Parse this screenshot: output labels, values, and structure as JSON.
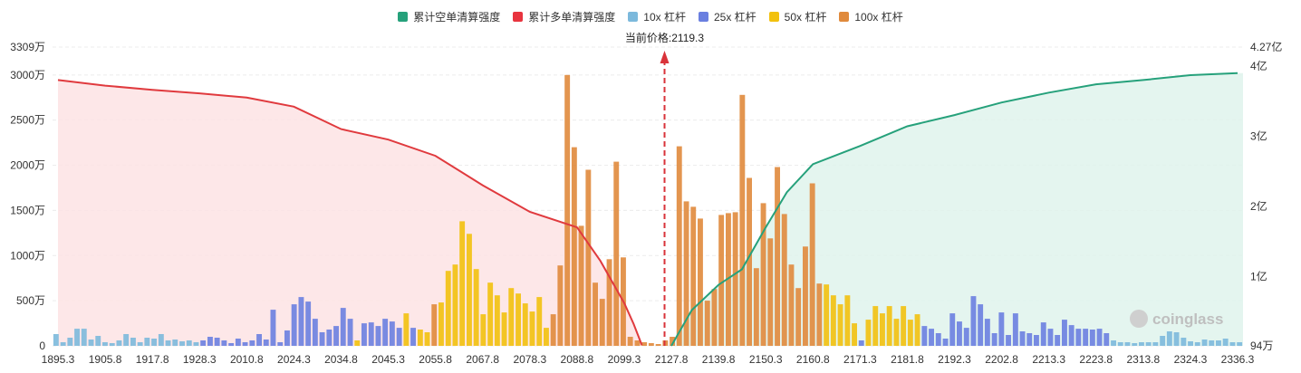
{
  "chart_data": {
    "type": "bar",
    "legend": [
      {
        "name": "累计空单清算强度",
        "color": "#26a17b"
      },
      {
        "name": "累计多单清算强度",
        "color": "#e8343f"
      },
      {
        "name": "10x 杠杆",
        "color": "#7cb9dc"
      },
      {
        "name": "25x 杠杆",
        "color": "#6a7fe0"
      },
      {
        "name": "50x 杠杆",
        "color": "#f2c10e"
      },
      {
        "name": "100x 杠杆",
        "color": "#e08a3c"
      }
    ],
    "annotation": "当前价格:2119.3",
    "current_price": 2119.3,
    "y_left_ticks": [
      "3309万",
      "3000万",
      "2500万",
      "2000万",
      "1500万",
      "1000万",
      "500万",
      "0"
    ],
    "y_left_range": [
      0,
      3309
    ],
    "y_left_unit": "万",
    "y_right_ticks": [
      "4.27亿",
      "4亿",
      "3亿",
      "2亿",
      "1亿",
      "94万"
    ],
    "y_right_range": [
      0.0094,
      4.27
    ],
    "y_right_unit": "亿",
    "x_ticks": [
      "1895.3",
      "1905.8",
      "1917.8",
      "1928.3",
      "2010.8",
      "2024.3",
      "2034.8",
      "2045.3",
      "2055.8",
      "2067.8",
      "2078.3",
      "2088.8",
      "2099.3",
      "2127.8",
      "2139.8",
      "2150.3",
      "2160.8",
      "2171.3",
      "2181.8",
      "2192.3",
      "2202.8",
      "2213.3",
      "2223.8",
      "2313.8",
      "2324.3",
      "2336.3"
    ],
    "bar_count": 170,
    "bars": [
      {
        "tier": "10x",
        "value": 130
      },
      {
        "tier": "10x",
        "value": 40
      },
      {
        "tier": "10x",
        "value": 90
      },
      {
        "tier": "10x",
        "value": 190
      },
      {
        "tier": "10x",
        "value": 190
      },
      {
        "tier": "10x",
        "value": 70
      },
      {
        "tier": "10x",
        "value": 110
      },
      {
        "tier": "10x",
        "value": 40
      },
      {
        "tier": "10x",
        "value": 30
      },
      {
        "tier": "10x",
        "value": 60
      },
      {
        "tier": "10x",
        "value": 130
      },
      {
        "tier": "10x",
        "value": 90
      },
      {
        "tier": "10x",
        "value": 40
      },
      {
        "tier": "10x",
        "value": 90
      },
      {
        "tier": "10x",
        "value": 80
      },
      {
        "tier": "10x",
        "value": 130
      },
      {
        "tier": "10x",
        "value": 60
      },
      {
        "tier": "10x",
        "value": 70
      },
      {
        "tier": "10x",
        "value": 50
      },
      {
        "tier": "10x",
        "value": 60
      },
      {
        "tier": "10x",
        "value": 40
      },
      {
        "tier": "25x",
        "value": 60
      },
      {
        "tier": "25x",
        "value": 100
      },
      {
        "tier": "25x",
        "value": 90
      },
      {
        "tier": "25x",
        "value": 60
      },
      {
        "tier": "25x",
        "value": 30
      },
      {
        "tier": "25x",
        "value": 80
      },
      {
        "tier": "25x",
        "value": 40
      },
      {
        "tier": "25x",
        "value": 60
      },
      {
        "tier": "25x",
        "value": 130
      },
      {
        "tier": "25x",
        "value": 70
      },
      {
        "tier": "25x",
        "value": 400
      },
      {
        "tier": "25x",
        "value": 40
      },
      {
        "tier": "25x",
        "value": 170
      },
      {
        "tier": "25x",
        "value": 460
      },
      {
        "tier": "25x",
        "value": 540
      },
      {
        "tier": "25x",
        "value": 490
      },
      {
        "tier": "25x",
        "value": 300
      },
      {
        "tier": "25x",
        "value": 150
      },
      {
        "tier": "25x",
        "value": 180
      },
      {
        "tier": "25x",
        "value": 220
      },
      {
        "tier": "25x",
        "value": 420
      },
      {
        "tier": "25x",
        "value": 300
      },
      {
        "tier": "50x",
        "value": 60
      },
      {
        "tier": "25x",
        "value": 250
      },
      {
        "tier": "25x",
        "value": 260
      },
      {
        "tier": "25x",
        "value": 220
      },
      {
        "tier": "25x",
        "value": 300
      },
      {
        "tier": "25x",
        "value": 270
      },
      {
        "tier": "25x",
        "value": 200
      },
      {
        "tier": "50x",
        "value": 360
      },
      {
        "tier": "25x",
        "value": 200
      },
      {
        "tier": "50x",
        "value": 180
      },
      {
        "tier": "50x",
        "value": 150
      },
      {
        "tier": "100x",
        "value": 460
      },
      {
        "tier": "50x",
        "value": 480
      },
      {
        "tier": "50x",
        "value": 830
      },
      {
        "tier": "50x",
        "value": 900
      },
      {
        "tier": "50x",
        "value": 1380
      },
      {
        "tier": "50x",
        "value": 1240
      },
      {
        "tier": "50x",
        "value": 850
      },
      {
        "tier": "50x",
        "value": 350
      },
      {
        "tier": "50x",
        "value": 700
      },
      {
        "tier": "50x",
        "value": 560
      },
      {
        "tier": "50x",
        "value": 370
      },
      {
        "tier": "50x",
        "value": 640
      },
      {
        "tier": "50x",
        "value": 580
      },
      {
        "tier": "50x",
        "value": 470
      },
      {
        "tier": "50x",
        "value": 380
      },
      {
        "tier": "50x",
        "value": 540
      },
      {
        "tier": "50x",
        "value": 200
      },
      {
        "tier": "100x",
        "value": 350
      },
      {
        "tier": "100x",
        "value": 890
      },
      {
        "tier": "100x",
        "value": 3000
      },
      {
        "tier": "100x",
        "value": 2200
      },
      {
        "tier": "100x",
        "value": 1330
      },
      {
        "tier": "100x",
        "value": 1950
      },
      {
        "tier": "100x",
        "value": 700
      },
      {
        "tier": "100x",
        "value": 520
      },
      {
        "tier": "100x",
        "value": 960
      },
      {
        "tier": "100x",
        "value": 2040
      },
      {
        "tier": "100x",
        "value": 980
      },
      {
        "tier": "100x",
        "value": 100
      },
      {
        "tier": "100x",
        "value": 60
      },
      {
        "tier": "100x",
        "value": 40
      },
      {
        "tier": "100x",
        "value": 30
      },
      {
        "tier": "100x",
        "value": 20
      },
      {
        "tier": "100x",
        "value": 60
      },
      {
        "tier": "100x",
        "value": 100
      },
      {
        "tier": "100x",
        "value": 2210
      },
      {
        "tier": "100x",
        "value": 1600
      },
      {
        "tier": "100x",
        "value": 1540
      },
      {
        "tier": "100x",
        "value": 1410
      },
      {
        "tier": "100x",
        "value": 500
      },
      {
        "tier": "100x",
        "value": 630
      },
      {
        "tier": "100x",
        "value": 1450
      },
      {
        "tier": "100x",
        "value": 1470
      },
      {
        "tier": "100x",
        "value": 1480
      },
      {
        "tier": "100x",
        "value": 2780
      },
      {
        "tier": "100x",
        "value": 1860
      },
      {
        "tier": "100x",
        "value": 860
      },
      {
        "tier": "100x",
        "value": 1580
      },
      {
        "tier": "100x",
        "value": 1190
      },
      {
        "tier": "100x",
        "value": 1980
      },
      {
        "tier": "100x",
        "value": 1460
      },
      {
        "tier": "100x",
        "value": 900
      },
      {
        "tier": "100x",
        "value": 640
      },
      {
        "tier": "100x",
        "value": 1100
      },
      {
        "tier": "100x",
        "value": 1800
      },
      {
        "tier": "100x",
        "value": 690
      },
      {
        "tier": "50x",
        "value": 680
      },
      {
        "tier": "50x",
        "value": 560
      },
      {
        "tier": "50x",
        "value": 460
      },
      {
        "tier": "50x",
        "value": 560
      },
      {
        "tier": "50x",
        "value": 250
      },
      {
        "tier": "25x",
        "value": 60
      },
      {
        "tier": "50x",
        "value": 290
      },
      {
        "tier": "50x",
        "value": 440
      },
      {
        "tier": "50x",
        "value": 360
      },
      {
        "tier": "50x",
        "value": 440
      },
      {
        "tier": "50x",
        "value": 300
      },
      {
        "tier": "50x",
        "value": 440
      },
      {
        "tier": "50x",
        "value": 290
      },
      {
        "tier": "50x",
        "value": 350
      },
      {
        "tier": "25x",
        "value": 220
      },
      {
        "tier": "25x",
        "value": 190
      },
      {
        "tier": "25x",
        "value": 140
      },
      {
        "tier": "25x",
        "value": 80
      },
      {
        "tier": "25x",
        "value": 360
      },
      {
        "tier": "25x",
        "value": 270
      },
      {
        "tier": "25x",
        "value": 200
      },
      {
        "tier": "25x",
        "value": 550
      },
      {
        "tier": "25x",
        "value": 460
      },
      {
        "tier": "25x",
        "value": 300
      },
      {
        "tier": "25x",
        "value": 140
      },
      {
        "tier": "25x",
        "value": 370
      },
      {
        "tier": "25x",
        "value": 120
      },
      {
        "tier": "25x",
        "value": 360
      },
      {
        "tier": "25x",
        "value": 160
      },
      {
        "tier": "25x",
        "value": 140
      },
      {
        "tier": "25x",
        "value": 120
      },
      {
        "tier": "25x",
        "value": 260
      },
      {
        "tier": "25x",
        "value": 190
      },
      {
        "tier": "25x",
        "value": 120
      },
      {
        "tier": "25x",
        "value": 290
      },
      {
        "tier": "25x",
        "value": 230
      },
      {
        "tier": "25x",
        "value": 190
      },
      {
        "tier": "25x",
        "value": 190
      },
      {
        "tier": "25x",
        "value": 180
      },
      {
        "tier": "25x",
        "value": 190
      },
      {
        "tier": "25x",
        "value": 140
      },
      {
        "tier": "10x",
        "value": 60
      },
      {
        "tier": "10x",
        "value": 40
      },
      {
        "tier": "10x",
        "value": 40
      },
      {
        "tier": "10x",
        "value": 30
      },
      {
        "tier": "10x",
        "value": 40
      },
      {
        "tier": "10x",
        "value": 40
      },
      {
        "tier": "10x",
        "value": 40
      },
      {
        "tier": "10x",
        "value": 110
      },
      {
        "tier": "10x",
        "value": 160
      },
      {
        "tier": "10x",
        "value": 150
      },
      {
        "tier": "10x",
        "value": 90
      },
      {
        "tier": "10x",
        "value": 50
      },
      {
        "tier": "10x",
        "value": 40
      },
      {
        "tier": "10x",
        "value": 70
      },
      {
        "tier": "10x",
        "value": 60
      },
      {
        "tier": "10x",
        "value": 60
      },
      {
        "tier": "10x",
        "value": 80
      },
      {
        "tier": "10x",
        "value": 40
      },
      {
        "tier": "10x",
        "value": 40
      }
    ],
    "long_cumulative": [
      {
        "x": 1895.3,
        "y": 3.8
      },
      {
        "x": 1905.8,
        "y": 3.72
      },
      {
        "x": 1917.8,
        "y": 3.66
      },
      {
        "x": 1928.3,
        "y": 3.61
      },
      {
        "x": 2010.8,
        "y": 3.55
      },
      {
        "x": 2024.3,
        "y": 3.42
      },
      {
        "x": 2034.8,
        "y": 3.1
      },
      {
        "x": 2045.3,
        "y": 2.95
      },
      {
        "x": 2055.8,
        "y": 2.72
      },
      {
        "x": 2067.8,
        "y": 2.3
      },
      {
        "x": 2078.3,
        "y": 1.92
      },
      {
        "x": 2088.8,
        "y": 1.7
      },
      {
        "x": 2094.0,
        "y": 1.22
      },
      {
        "x": 2099.3,
        "y": 0.62
      },
      {
        "x": 2105.0,
        "y": 0.32
      },
      {
        "x": 2110.0,
        "y": 0.02
      }
    ],
    "short_cumulative": [
      {
        "x": 2127.8,
        "y": 0.01
      },
      {
        "x": 2133.0,
        "y": 0.52
      },
      {
        "x": 2139.8,
        "y": 0.88
      },
      {
        "x": 2145.0,
        "y": 1.1
      },
      {
        "x": 2150.3,
        "y": 1.7
      },
      {
        "x": 2155.0,
        "y": 2.2
      },
      {
        "x": 2160.8,
        "y": 2.6
      },
      {
        "x": 2171.3,
        "y": 2.86
      },
      {
        "x": 2181.8,
        "y": 3.14
      },
      {
        "x": 2192.3,
        "y": 3.3
      },
      {
        "x": 2202.8,
        "y": 3.48
      },
      {
        "x": 2213.3,
        "y": 3.62
      },
      {
        "x": 2223.8,
        "y": 3.74
      },
      {
        "x": 2313.8,
        "y": 3.8
      },
      {
        "x": 2324.3,
        "y": 3.87
      },
      {
        "x": 2336.3,
        "y": 3.9
      }
    ],
    "watermark": "coinglass",
    "grid": true
  }
}
